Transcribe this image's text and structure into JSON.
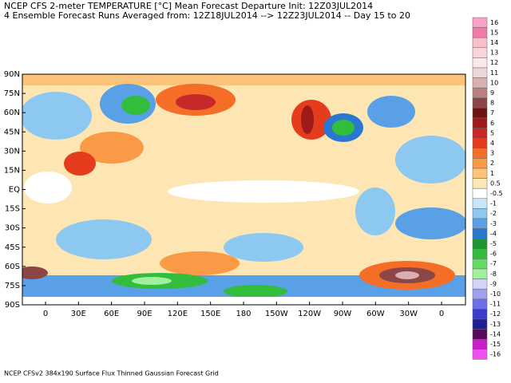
{
  "header": {
    "title": "NCEP CFS 2-meter TEMPERATURE [°C] Mean Forecast Departure Init: 12Z03JUL2014",
    "subtitle": "4 Ensemble Forecast Runs Averaged from: 12Z18JUL2014 --> 12Z23JUL2014 -- Day 15 to 20"
  },
  "map": {
    "lat_labels": [
      "90N",
      "75N",
      "60N",
      "45N",
      "30N",
      "15N",
      "EQ",
      "15S",
      "30S",
      "45S",
      "60S",
      "75S",
      "90S"
    ],
    "lon_labels": [
      "0",
      "30E",
      "60E",
      "90E",
      "120E",
      "150E",
      "180",
      "150W",
      "120W",
      "90W",
      "60W",
      "30W",
      "0"
    ]
  },
  "colorbar": {
    "labels": [
      16,
      15,
      14,
      13,
      12,
      11,
      10,
      9,
      8,
      7,
      6,
      5,
      4,
      3,
      2,
      1,
      0.5,
      -0.5,
      -1,
      -2,
      -3,
      -4,
      -5,
      -6,
      -7,
      -8,
      -9,
      -10,
      -11,
      -12,
      -13,
      -14,
      -15,
      -16
    ],
    "colors": [
      "#fba0c8",
      "#f07aa8",
      "#f5c0c8",
      "#f9d5d9",
      "#fde9ec",
      "#ecd8d8",
      "#d8b0b0",
      "#b88080",
      "#8c4646",
      "#6e1414",
      "#a01a1a",
      "#c82828",
      "#e63c1e",
      "#f56e28",
      "#fa9a46",
      "#fcc47a",
      "#fde6b4",
      "#ffffff",
      "#c8e6fa",
      "#8cc8f0",
      "#5aa0e6",
      "#2878d2",
      "#1e9632",
      "#32be3c",
      "#64dc64",
      "#a0f0a0",
      "#d2d2fa",
      "#a0a0f0",
      "#6e6ee6",
      "#3c3cc8",
      "#1e1e96",
      "#5a0a5a",
      "#c81ec8",
      "#f050f0"
    ]
  },
  "footer": "NCEP CFSv2 384x190 Surface Flux Thinned Gaussian Forecast Grid"
}
